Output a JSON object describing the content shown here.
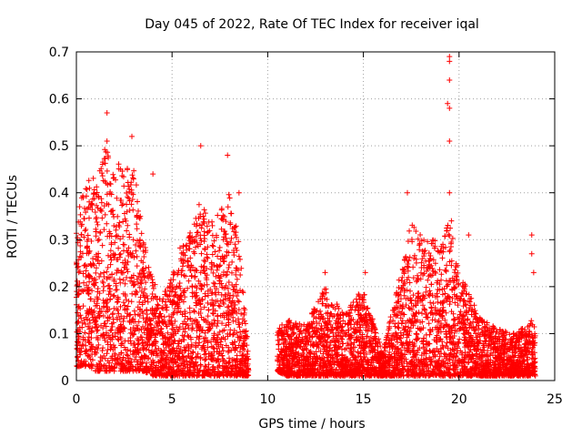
{
  "chart_data": {
    "type": "scatter",
    "title": "Day 045 of 2022, Rate Of TEC Index for receiver iqal",
    "xlabel": "GPS time / hours",
    "ylabel": "ROTI / TECUs",
    "xlim": [
      0,
      25
    ],
    "ylim": [
      0,
      0.7
    ],
    "xticks": [
      0,
      5,
      10,
      15,
      20,
      25
    ],
    "yticks": [
      0,
      0.1,
      0.2,
      0.3,
      0.4,
      0.5,
      0.6,
      0.7
    ],
    "xtick_labels": [
      "0",
      "5",
      "10",
      "15",
      "20",
      "25"
    ],
    "ytick_labels": [
      "0",
      "0.1",
      "0.2",
      "0.3",
      "0.4",
      "0.5",
      "0.6",
      "0.7"
    ],
    "grid": true,
    "marker": "+",
    "color": "#ff0000",
    "series": [
      {
        "name": "ROTI",
        "envelope": [
          {
            "x": 0.0,
            "low": 0.03,
            "high": 0.36
          },
          {
            "x": 0.5,
            "low": 0.03,
            "high": 0.42
          },
          {
            "x": 1.0,
            "low": 0.02,
            "high": 0.44
          },
          {
            "x": 1.5,
            "low": 0.02,
            "high": 0.5
          },
          {
            "x": 2.0,
            "low": 0.02,
            "high": 0.48
          },
          {
            "x": 2.5,
            "low": 0.02,
            "high": 0.44
          },
          {
            "x": 3.0,
            "low": 0.02,
            "high": 0.48
          },
          {
            "x": 3.5,
            "low": 0.02,
            "high": 0.3
          },
          {
            "x": 4.0,
            "low": 0.01,
            "high": 0.22
          },
          {
            "x": 4.5,
            "low": 0.01,
            "high": 0.18
          },
          {
            "x": 5.0,
            "low": 0.01,
            "high": 0.22
          },
          {
            "x": 5.5,
            "low": 0.01,
            "high": 0.3
          },
          {
            "x": 6.0,
            "low": 0.01,
            "high": 0.32
          },
          {
            "x": 6.5,
            "low": 0.01,
            "high": 0.4
          },
          {
            "x": 7.0,
            "low": 0.01,
            "high": 0.34
          },
          {
            "x": 7.5,
            "low": 0.01,
            "high": 0.36
          },
          {
            "x": 8.0,
            "low": 0.01,
            "high": 0.4
          },
          {
            "x": 8.5,
            "low": 0.01,
            "high": 0.3
          },
          {
            "x": 9.0,
            "low": 0.01,
            "high": 0.06
          },
          {
            "x": 10.5,
            "low": 0.02,
            "high": 0.12
          },
          {
            "x": 11.0,
            "low": 0.01,
            "high": 0.13
          },
          {
            "x": 12.0,
            "low": 0.01,
            "high": 0.12
          },
          {
            "x": 13.0,
            "low": 0.01,
            "high": 0.2
          },
          {
            "x": 14.0,
            "low": 0.01,
            "high": 0.14
          },
          {
            "x": 15.0,
            "low": 0.01,
            "high": 0.2
          },
          {
            "x": 16.0,
            "low": 0.01,
            "high": 0.06
          },
          {
            "x": 17.0,
            "low": 0.01,
            "high": 0.24
          },
          {
            "x": 17.5,
            "low": 0.01,
            "high": 0.34
          },
          {
            "x": 18.0,
            "low": 0.01,
            "high": 0.32
          },
          {
            "x": 18.5,
            "low": 0.01,
            "high": 0.3
          },
          {
            "x": 19.0,
            "low": 0.01,
            "high": 0.3
          },
          {
            "x": 19.5,
            "low": 0.01,
            "high": 0.34
          },
          {
            "x": 20.0,
            "low": 0.01,
            "high": 0.24
          },
          {
            "x": 21.0,
            "low": 0.01,
            "high": 0.14
          },
          {
            "x": 22.0,
            "low": 0.01,
            "high": 0.11
          },
          {
            "x": 23.0,
            "low": 0.01,
            "high": 0.1
          },
          {
            "x": 24.0,
            "low": 0.01,
            "high": 0.14
          }
        ],
        "outliers": [
          {
            "x": 1.6,
            "y": 0.57
          },
          {
            "x": 1.6,
            "y": 0.51
          },
          {
            "x": 2.9,
            "y": 0.52
          },
          {
            "x": 6.5,
            "y": 0.5
          },
          {
            "x": 7.9,
            "y": 0.48
          },
          {
            "x": 4.0,
            "y": 0.44
          },
          {
            "x": 8.5,
            "y": 0.4
          },
          {
            "x": 17.3,
            "y": 0.4
          },
          {
            "x": 19.5,
            "y": 0.69
          },
          {
            "x": 19.5,
            "y": 0.68
          },
          {
            "x": 19.5,
            "y": 0.64
          },
          {
            "x": 19.4,
            "y": 0.59
          },
          {
            "x": 19.5,
            "y": 0.58
          },
          {
            "x": 19.5,
            "y": 0.51
          },
          {
            "x": 19.5,
            "y": 0.4
          },
          {
            "x": 19.6,
            "y": 0.34
          },
          {
            "x": 20.5,
            "y": 0.31
          },
          {
            "x": 23.8,
            "y": 0.31
          },
          {
            "x": 23.8,
            "y": 0.27
          },
          {
            "x": 23.9,
            "y": 0.23
          },
          {
            "x": 13.0,
            "y": 0.23
          },
          {
            "x": 15.1,
            "y": 0.23
          }
        ]
      }
    ]
  }
}
